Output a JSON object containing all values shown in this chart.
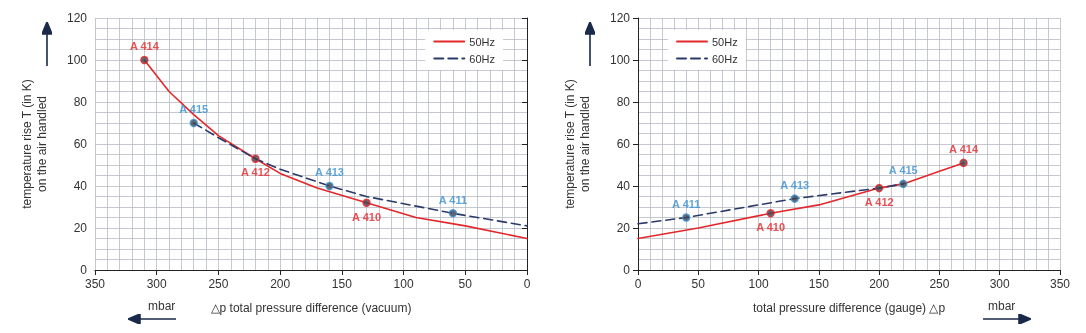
{
  "chart_data": [
    {
      "type": "line",
      "xlabel": "△p total pressure difference (vacuum)",
      "ylabel": "temperature rise T (in K)\non the air handled",
      "xlim": [
        350,
        0
      ],
      "xticks": [
        350,
        300,
        250,
        200,
        150,
        100,
        50,
        0
      ],
      "ylim": [
        0,
        120
      ],
      "yticks": [
        0,
        20,
        40,
        60,
        80,
        100,
        120
      ],
      "grid": true,
      "legend": "top right",
      "annotations": [
        "mbar"
      ],
      "series": [
        {
          "name": "50Hz",
          "color": "#e3272b",
          "line_style": "solid",
          "marker": "none",
          "x": [
            310,
            290,
            270,
            250,
            220,
            200,
            170,
            130,
            90,
            50,
            0
          ],
          "values": [
            100,
            85,
            74,
            64,
            53,
            46,
            39,
            32,
            25,
            21,
            15
          ]
        },
        {
          "name": "60Hz",
          "color": "#2b3a6b",
          "line_style": "dashed",
          "marker": "none",
          "x": [
            270,
            250,
            220,
            200,
            160,
            130,
            60,
            0
          ],
          "values": [
            70,
            63,
            53,
            48,
            40,
            35,
            27,
            21
          ]
        },
        {
          "type": "scatter",
          "color": "#e3272b",
          "marker": "circle",
          "x": [
            310,
            220,
            130
          ],
          "values": [
            100,
            53,
            32
          ],
          "value_labels": [
            "A 414",
            "A 412",
            "A 410"
          ]
        },
        {
          "type": "scatter",
          "color": "#3a8fd0",
          "marker": "circle",
          "x": [
            270,
            160,
            60
          ],
          "values": [
            70,
            40,
            27
          ],
          "value_labels": [
            "A 415",
            "A 413",
            "A 411"
          ]
        }
      ]
    },
    {
      "type": "line",
      "xlabel": "total pressure difference (gauge) △p",
      "ylabel": "temperature rise T (in K)\non the air handled",
      "xlim": [
        0,
        350
      ],
      "xticks": [
        0,
        50,
        100,
        150,
        200,
        250,
        300,
        350
      ],
      "ylim": [
        0,
        120
      ],
      "yticks": [
        0,
        20,
        40,
        60,
        80,
        100,
        120
      ],
      "grid": true,
      "legend": "top left",
      "annotations": [
        "mbar"
      ],
      "series": [
        {
          "name": "50Hz",
          "color": "#e3272b",
          "line_style": "solid",
          "marker": "none",
          "x": [
            0,
            50,
            110,
            150,
            200,
            220,
            250,
            270
          ],
          "values": [
            15,
            20,
            27,
            31,
            39,
            41,
            47,
            51
          ]
        },
        {
          "name": "60Hz",
          "color": "#2b3a6b",
          "line_style": "dashed",
          "marker": "none",
          "x": [
            0,
            40,
            130,
            200,
            220
          ],
          "values": [
            22,
            25,
            34,
            39,
            41
          ]
        },
        {
          "type": "scatter",
          "color": "#e3272b",
          "marker": "circle",
          "x": [
            110,
            200,
            270
          ],
          "values": [
            27,
            39,
            51
          ],
          "value_labels": [
            "A 410",
            "A 412",
            "A 414"
          ]
        },
        {
          "type": "scatter",
          "color": "#3a8fd0",
          "marker": "circle",
          "x": [
            40,
            130,
            220
          ],
          "values": [
            25,
            34,
            41
          ],
          "value_labels": [
            "A 411",
            "A 413",
            "A 415"
          ]
        }
      ]
    }
  ]
}
